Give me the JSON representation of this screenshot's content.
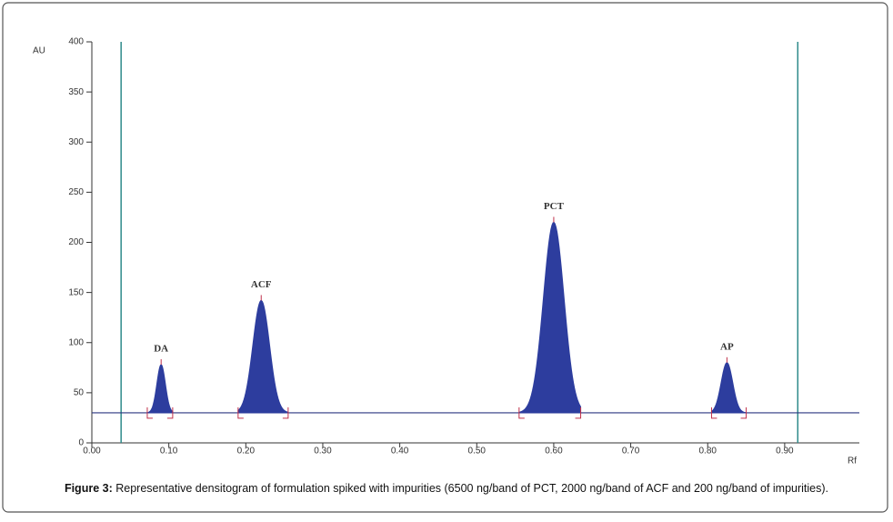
{
  "chart_data": {
    "type": "densitogram",
    "y_label": "AU",
    "x_label": "Rf",
    "caption_label": "Figure 3:",
    "caption_text": "Representative densitogram of formulation spiked with impurities (6500 ng/band of PCT, 2000 ng/band of ACF and 200 ng/band of impurities).",
    "xlim": [
      0,
      0.997
    ],
    "ylim": [
      0,
      400
    ],
    "xticks": [
      {
        "value": 0,
        "label": "0.00"
      },
      {
        "value": 0.1,
        "label": "0.10"
      },
      {
        "value": 0.2,
        "label": "0.20"
      },
      {
        "value": 0.3,
        "label": "0.30"
      },
      {
        "value": 0.4,
        "label": "0.40"
      },
      {
        "value": 0.5,
        "label": "0.50"
      },
      {
        "value": 0.6,
        "label": "0.60"
      },
      {
        "value": 0.7,
        "label": "0.70"
      },
      {
        "value": 0.8,
        "label": "0.80"
      },
      {
        "value": 0.9,
        "label": "0.90"
      }
    ],
    "yticks": [
      0,
      50,
      100,
      150,
      200,
      250,
      300,
      350,
      400
    ],
    "baseline": 30,
    "baseline_color": "#2b3680",
    "window_lines": [
      0.038,
      0.917
    ],
    "window_color": "#2e8b8b",
    "peak_color": "#2d3d9e",
    "peaks": [
      {
        "label": "DA",
        "rf": 0.09,
        "height": 78,
        "start": 0.072,
        "end": 0.105
      },
      {
        "label": "ACF",
        "rf": 0.22,
        "height": 142,
        "start": 0.19,
        "end": 0.255
      },
      {
        "label": "PCT",
        "rf": 0.6,
        "height": 220,
        "start": 0.555,
        "end": 0.635
      },
      {
        "label": "AP",
        "rf": 0.825,
        "height": 80,
        "start": 0.805,
        "end": 0.85
      }
    ]
  }
}
